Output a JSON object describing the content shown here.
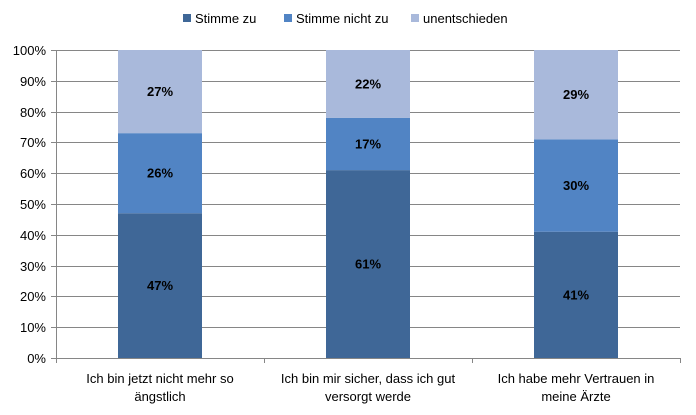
{
  "chart_data": {
    "type": "bar",
    "stacked": true,
    "percent": true,
    "categories": [
      [
        "Ich bin jetzt nicht mehr so",
        "ängstlich"
      ],
      [
        "Ich bin mir sicher, dass ich gut",
        "versorgt werde"
      ],
      [
        "Ich habe mehr Vertrauen in",
        "meine Ärzte"
      ]
    ],
    "series": [
      {
        "name": "Stimme zu",
        "color": "#3F6797",
        "values": [
          47,
          61,
          41
        ],
        "labels": [
          "47%",
          "61%",
          "41%"
        ]
      },
      {
        "name": "Stimme nicht zu",
        "color": "#5184C4",
        "values": [
          26,
          17,
          30
        ],
        "labels": [
          "26%",
          "17%",
          "30%"
        ]
      },
      {
        "name": "unentschieden",
        "color": "#A9B9DB",
        "values": [
          27,
          22,
          29
        ],
        "labels": [
          "27%",
          "22%",
          "29%"
        ]
      }
    ],
    "y_ticks": [
      "0%",
      "10%",
      "20%",
      "30%",
      "40%",
      "50%",
      "60%",
      "70%",
      "80%",
      "90%",
      "100%"
    ],
    "ylim": [
      0,
      100
    ],
    "grid": true,
    "legend_position": "top"
  }
}
